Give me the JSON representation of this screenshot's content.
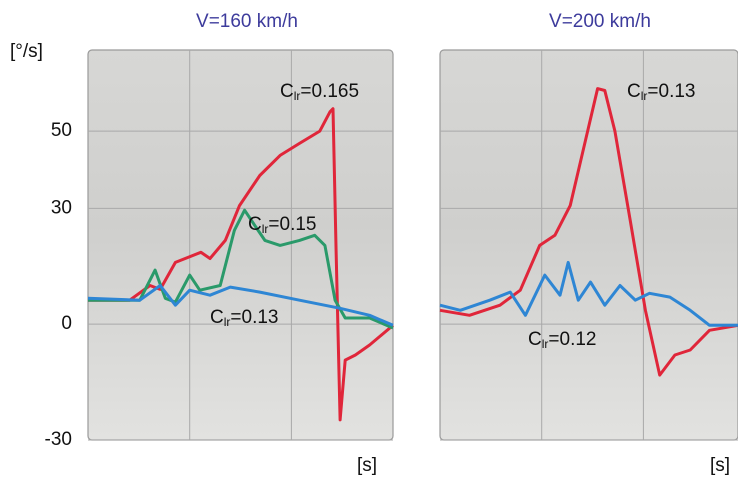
{
  "chart_data": [
    {
      "type": "line",
      "title": "V=160 km/h",
      "y_label": "[°/s]",
      "x_label": "[s]",
      "xlim": [
        0,
        3
      ],
      "ylim": [
        -30,
        71
      ],
      "yticks": [
        -30,
        0,
        30,
        50
      ],
      "grid": true,
      "series": [
        {
          "name_parts": [
            "C",
            "lr",
            "=0.165"
          ],
          "color": "#e0263a",
          "x": [
            0,
            0.41,
            0.61,
            0.71,
            0.86,
            1.11,
            1.2,
            1.35,
            1.49,
            1.69,
            1.89,
            2.08,
            2.28,
            2.38,
            2.41,
            2.44,
            2.48,
            2.53,
            2.63,
            2.77,
            3.0
          ],
          "values": [
            6.2,
            6.2,
            10,
            9,
            16,
            18.6,
            17,
            21.7,
            30.7,
            38.5,
            43.7,
            46.8,
            50,
            55,
            55.8,
            19,
            -24.8,
            -9.3,
            -8,
            -5.4,
            -0.3
          ]
        },
        {
          "name_parts": [
            "C",
            "lr",
            "=0.15"
          ],
          "color": "#2a9a6a",
          "x": [
            0,
            0.51,
            0.66,
            0.76,
            0.86,
            1.0,
            1.1,
            1.3,
            1.44,
            1.54,
            1.64,
            1.74,
            1.89,
            2.08,
            2.23,
            2.33,
            2.43,
            2.53,
            2.77,
            3.0
          ],
          "values": [
            6.2,
            6.2,
            14,
            6.7,
            5.7,
            12.7,
            8.8,
            10,
            24.3,
            29.5,
            25.6,
            21.7,
            20.4,
            21.7,
            23,
            20.4,
            6.2,
            1.6,
            1.6,
            -1
          ]
        },
        {
          "name_parts": [
            "C",
            "lr",
            "=0.13"
          ],
          "color": "#2e86d4",
          "x": [
            0,
            0.51,
            0.71,
            0.86,
            1.0,
            1.2,
            1.4,
            1.69,
            2.08,
            2.48,
            2.77,
            3.0
          ],
          "values": [
            6.7,
            6.2,
            10,
            4.9,
            8.8,
            7.5,
            9.6,
            8.3,
            6.2,
            4.1,
            2.3,
            -0.3
          ]
        }
      ]
    },
    {
      "type": "line",
      "title": "V=200 km/h",
      "x_label": "[s]",
      "xlim": [
        0,
        2.93
      ],
      "ylim": [
        -30,
        71
      ],
      "series": [
        {
          "name_parts": [
            "C",
            "lr",
            "=0.13"
          ],
          "color": "#e0263a",
          "x": [
            0,
            0.29,
            0.59,
            0.79,
            0.98,
            1.13,
            1.28,
            1.43,
            1.55,
            1.62,
            1.72,
            1.87,
            2.02,
            2.16,
            2.31,
            2.46,
            2.65,
            2.93
          ],
          "values": [
            3.6,
            2.3,
            4.9,
            8.8,
            20.4,
            23,
            30.7,
            47.5,
            61,
            60.5,
            50,
            26.9,
            3.6,
            -13.2,
            -8,
            -6.7,
            -1.6,
            -0.3
          ]
        },
        {
          "name_parts": [
            "C",
            "lr",
            "=0.12"
          ],
          "color": "#2e86d4",
          "x": [
            0,
            0.2,
            0.49,
            0.69,
            0.84,
            1.03,
            1.18,
            1.26,
            1.36,
            1.48,
            1.62,
            1.77,
            1.92,
            2.06,
            2.26,
            2.46,
            2.65,
            2.93
          ],
          "values": [
            4.9,
            3.6,
            6.2,
            8.3,
            2.3,
            12.7,
            7.5,
            16,
            6.2,
            10.9,
            4.9,
            10,
            6.2,
            8,
            7,
            3.6,
            -0.3,
            -0.3
          ]
        }
      ]
    }
  ]
}
